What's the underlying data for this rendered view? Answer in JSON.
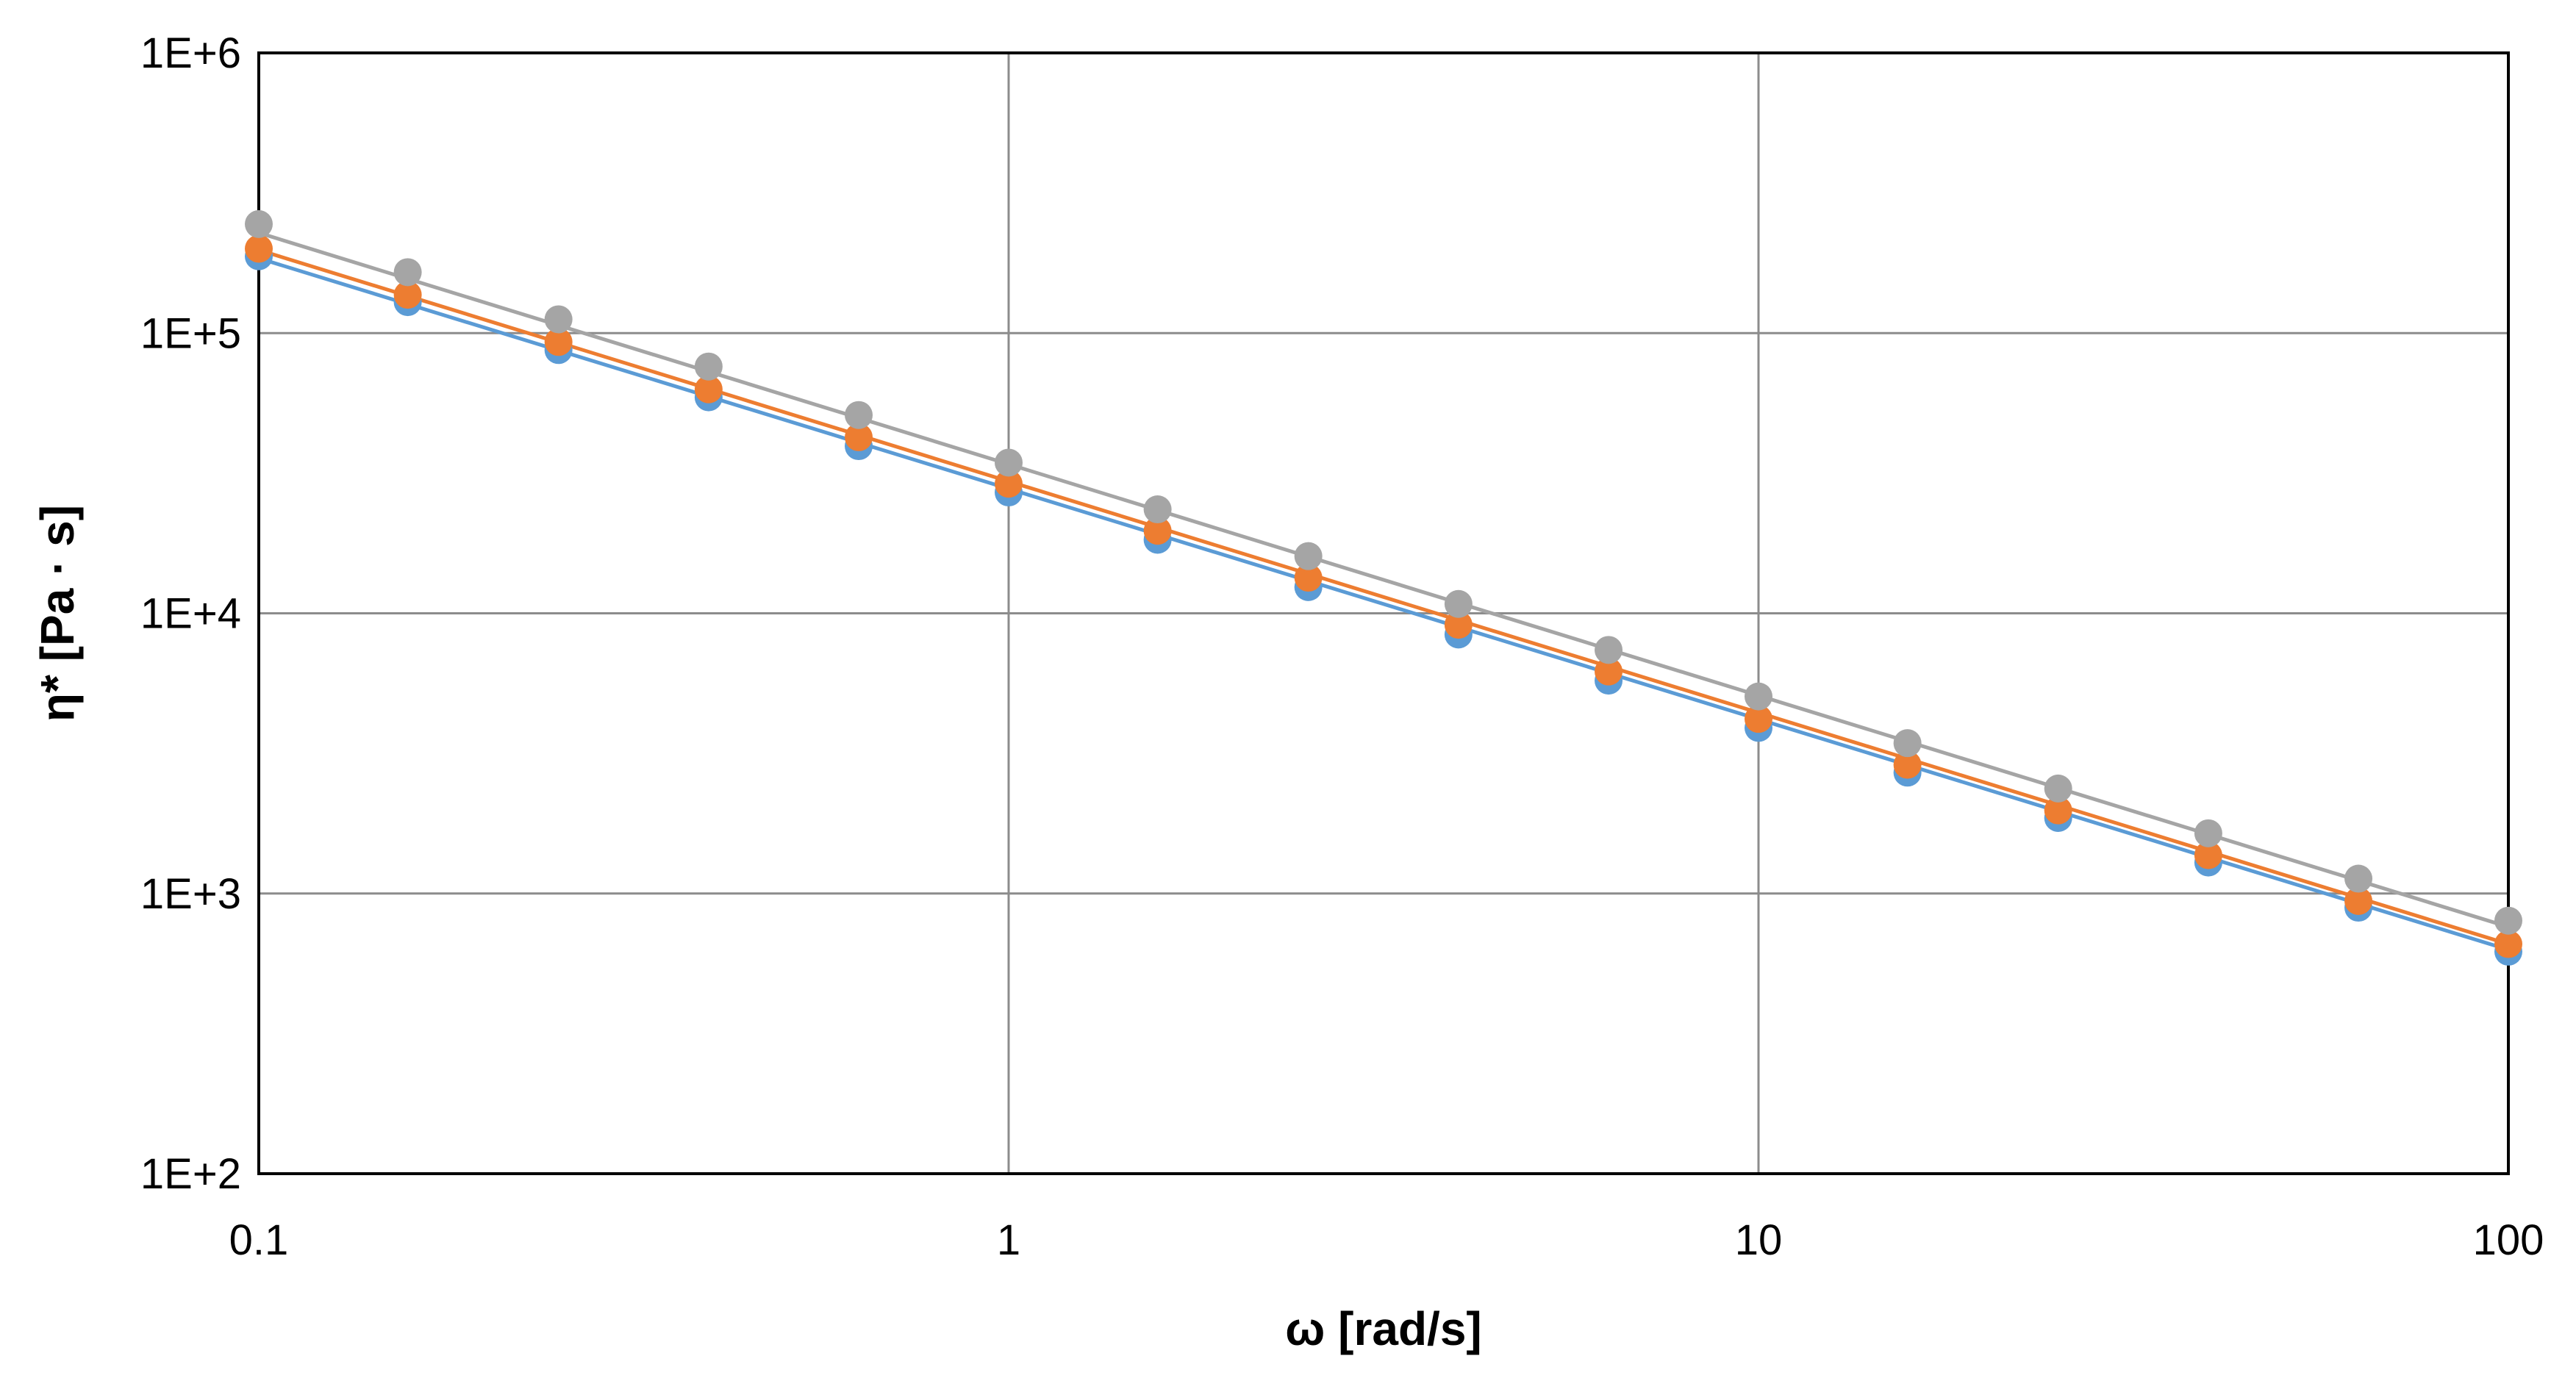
{
  "chart_data": {
    "type": "scatter",
    "xlabel": "ω [rad/s]",
    "ylabel": "η* [Pa · s]",
    "x_scale": "log",
    "y_scale": "log",
    "xlim": [
      0.1,
      100
    ],
    "ylim": [
      100,
      1000000
    ],
    "x_ticks": [
      0.1,
      1,
      10,
      100
    ],
    "x_tick_labels": [
      "0.1",
      "1",
      "10",
      "100"
    ],
    "y_ticks": [
      100,
      1000,
      10000,
      100000,
      1000000
    ],
    "y_tick_labels": [
      "1E+2",
      "1E+3",
      "1E+4",
      "1E+5",
      "1E+6"
    ],
    "grid": true,
    "legend": "none",
    "x": [
      0.1,
      0.158,
      0.251,
      0.398,
      0.631,
      1,
      1.58,
      2.51,
      3.98,
      6.31,
      10,
      15.8,
      25.1,
      39.8,
      63.1,
      100
    ],
    "series": [
      {
        "color": "#5B9BD5",
        "values": [
          188000,
          129000,
          87000,
          59000,
          39500,
          27000,
          18300,
          12400,
          8400,
          5750,
          3900,
          2700,
          1860,
          1290,
          890,
          620
        ],
        "fit": [
          185000,
          630
        ]
      },
      {
        "color": "#ED7D31",
        "values": [
          200000,
          137000,
          93000,
          63000,
          42500,
          29000,
          19700,
          13400,
          9100,
          6200,
          4200,
          2880,
          1980,
          1370,
          940,
          660
        ],
        "fit": [
          198000,
          660
        ]
      },
      {
        "color": "#A5A5A5",
        "values": [
          245000,
          165000,
          112000,
          76000,
          51000,
          34500,
          23500,
          16000,
          10800,
          7400,
          5050,
          3440,
          2370,
          1640,
          1130,
          800
        ],
        "fit": [
          228000,
          760
        ]
      }
    ]
  }
}
